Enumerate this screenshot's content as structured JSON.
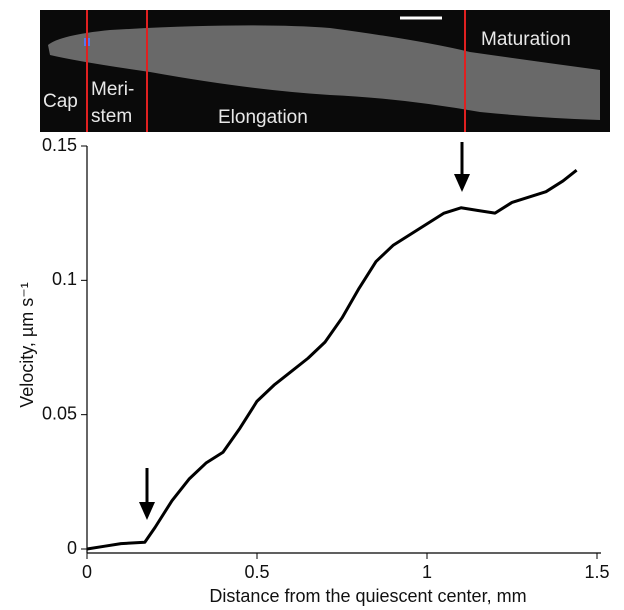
{
  "chart_data": {
    "type": "line",
    "image_labels": [
      "Cap",
      "Meri-",
      "stem",
      "Elongation",
      "Maturation"
    ],
    "xlabel": "Distance from the quiescent center, mm",
    "ylabel": "Velocity, µm s⁻¹",
    "series": [
      {
        "color": "#000000",
        "x": [
          0,
          0.05,
          0.1,
          0.17,
          0.2,
          0.25,
          0.3,
          0.35,
          0.4,
          0.45,
          0.5,
          0.55,
          0.6,
          0.65,
          0.7,
          0.75,
          0.8,
          0.85,
          0.9,
          0.95,
          1.0,
          1.05,
          1.1,
          1.15,
          1.2,
          1.25,
          1.3,
          1.35,
          1.4,
          1.44
        ],
        "values": [
          0,
          0.001,
          0.002,
          0.0025,
          0.008,
          0.018,
          0.026,
          0.032,
          0.036,
          0.045,
          0.055,
          0.061,
          0.066,
          0.071,
          0.077,
          0.086,
          0.097,
          0.107,
          0.113,
          0.117,
          0.121,
          0.125,
          0.127,
          0.126,
          0.125,
          0.129,
          0.131,
          0.133,
          0.137,
          0.141
        ]
      }
    ],
    "xlim": [
      0,
      1.5
    ],
    "xticks": [
      0,
      0.5,
      1,
      1.5
    ],
    "ylim": [
      0,
      0.15
    ],
    "yticks": [
      0,
      0.05,
      0.1,
      0.15
    ]
  }
}
